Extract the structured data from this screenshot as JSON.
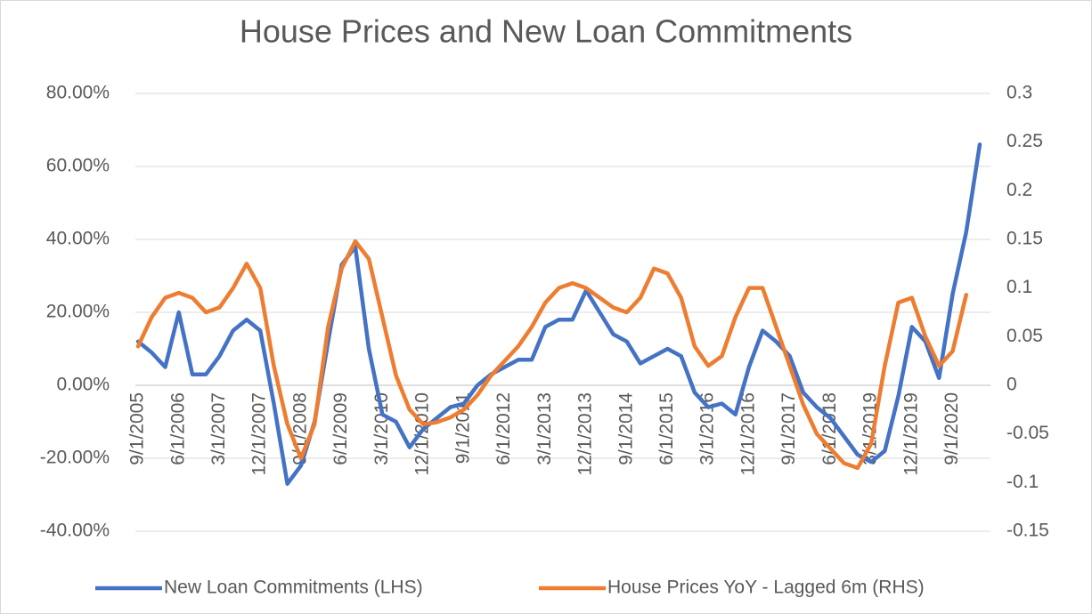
{
  "chart_data": {
    "type": "line",
    "title": "House Prices and New Loan Commitments",
    "categories": [
      "9/1/2005",
      null,
      null,
      "6/1/2006",
      null,
      null,
      "3/1/2007",
      null,
      null,
      "12/1/2007",
      null,
      null,
      "9/1/2008",
      null,
      null,
      "6/1/2009",
      null,
      null,
      "3/1/2010",
      null,
      null,
      "12/1/2010",
      null,
      null,
      "9/1/2011",
      null,
      null,
      "6/1/2012",
      null,
      null,
      "3/1/2013",
      null,
      null,
      "12/1/2013",
      null,
      null,
      "9/1/2014",
      null,
      null,
      "6/1/2015",
      null,
      null,
      "3/1/2016",
      null,
      null,
      "12/1/2016",
      null,
      null,
      "9/1/2017",
      null,
      null,
      "6/1/2018",
      null,
      null,
      "3/1/2019",
      null,
      null,
      "12/1/2019",
      null,
      null,
      "9/1/2020",
      null,
      null
    ],
    "series": [
      {
        "name": "New Loan Commitments (LHS)",
        "color": "#4472c4",
        "axis": "y",
        "values": [
          12,
          9,
          5,
          20,
          3,
          3,
          8,
          15,
          18,
          15,
          -5,
          -27,
          -22,
          -10,
          12,
          33,
          38,
          10,
          -8,
          -10,
          -17,
          -12,
          -9,
          -6,
          -5,
          0,
          3,
          5,
          7,
          7,
          16,
          18,
          18,
          26,
          20,
          14,
          12,
          6,
          8,
          10,
          8,
          -2,
          -6,
          -5,
          -8,
          5,
          15,
          12,
          8,
          -2,
          -6,
          -9,
          -14,
          -19,
          -21,
          -18,
          -3,
          16,
          12,
          2,
          25,
          42,
          66
        ]
      },
      {
        "name": "House Prices YoY - Lagged 6m (RHS)",
        "color": "#ed7d31",
        "axis": "y2",
        "values": [
          0.04,
          0.07,
          0.09,
          0.095,
          0.09,
          0.075,
          0.08,
          0.1,
          0.125,
          0.1,
          0.02,
          -0.04,
          -0.075,
          -0.04,
          0.06,
          0.12,
          0.148,
          0.13,
          0.07,
          0.01,
          -0.025,
          -0.04,
          -0.038,
          -0.033,
          -0.025,
          -0.01,
          0.01,
          0.025,
          0.04,
          0.06,
          0.085,
          0.1,
          0.105,
          0.1,
          0.09,
          0.08,
          0.075,
          0.09,
          0.12,
          0.115,
          0.09,
          0.04,
          0.02,
          0.03,
          0.07,
          0.1,
          0.1,
          0.06,
          0.02,
          -0.02,
          -0.05,
          -0.065,
          -0.08,
          -0.085,
          -0.06,
          0.02,
          0.085,
          0.09,
          0.05,
          0.02,
          0.035,
          0.093,
          null
        ]
      }
    ],
    "ylim": [
      -40,
      80
    ],
    "yticks": [
      {
        "value": -40,
        "label": "-40.00%"
      },
      {
        "value": -20,
        "label": "-20.00%"
      },
      {
        "value": 0,
        "label": "0.00%"
      },
      {
        "value": 20,
        "label": "20.00%"
      },
      {
        "value": 40,
        "label": "40.00%"
      },
      {
        "value": 60,
        "label": "60.00%"
      },
      {
        "value": 80,
        "label": "80.00%"
      }
    ],
    "y2lim": [
      -0.15,
      0.3
    ],
    "y2ticks": [
      -0.15,
      -0.1,
      -0.05,
      0,
      0.05,
      0.1,
      0.15,
      0.2,
      0.25,
      0.3
    ],
    "grid": true,
    "legend": "bottom"
  }
}
